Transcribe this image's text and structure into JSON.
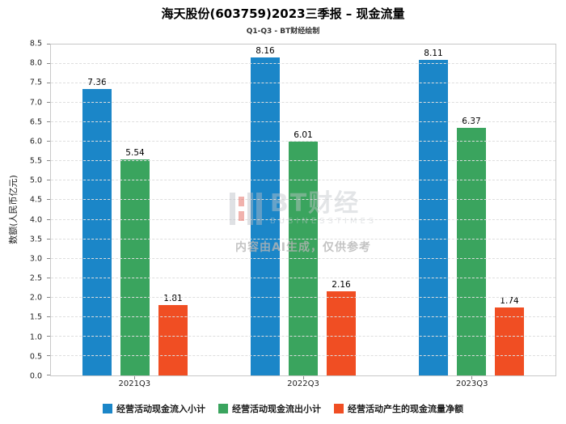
{
  "title": "海天股份(603759)2023三季报 – 现金流量",
  "subtitle": "Q1-Q3 - BT财经绘制",
  "watermark": {
    "brand": "BT财经",
    "brand_sub": "BUSINESSTIMES",
    "disclaimer": "内容由AI生成，仅供参考"
  },
  "chart_data": {
    "type": "bar",
    "title": "海天股份(603759)2023三季报 – 现金流量",
    "subtitle": "Q1-Q3 - BT财经绘制",
    "categories": [
      "2021Q3",
      "2022Q3",
      "2023Q3"
    ],
    "series": [
      {
        "name": "经营活动现金流入小计",
        "color": "#1b86c8",
        "values": [
          7.36,
          8.16,
          8.11
        ]
      },
      {
        "name": "经营活动现金流出小计",
        "color": "#3aa45e",
        "values": [
          5.54,
          6.01,
          6.37
        ]
      },
      {
        "name": "经营活动产生的现金流量净额",
        "color": "#f04e23",
        "values": [
          1.81,
          2.16,
          1.74
        ]
      }
    ],
    "xlabel": "",
    "ylabel": "数额(人民币亿元)",
    "ylim": [
      0,
      8.5
    ],
    "ytick_step": 0.5,
    "grid": true,
    "legend_position": "bottom",
    "value_labels": true
  }
}
